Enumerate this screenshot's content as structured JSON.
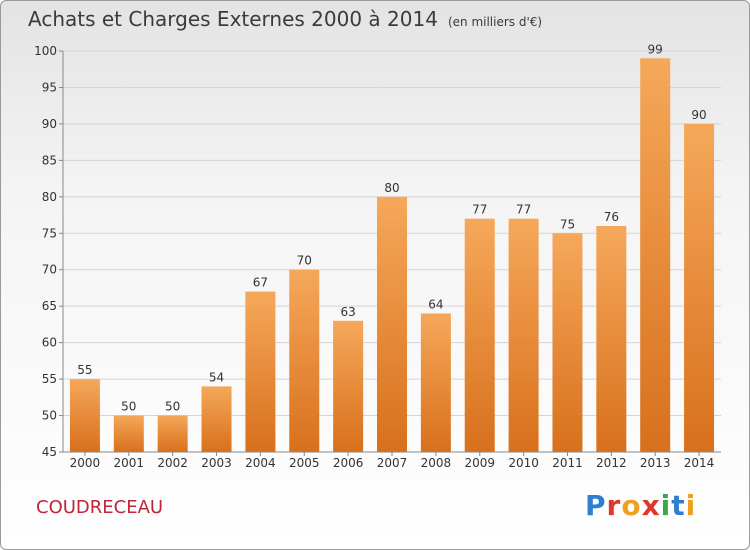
{
  "title": "Achats et Charges Externes 2000 à 2014",
  "subtitle": "(en milliers d'€)",
  "commune": "COUDRECEAU",
  "logo_text": "Proxiti",
  "colors": {
    "bar_light": "#f5a85a",
    "bar_dark": "#d8701c",
    "commune": "#c0253a"
  },
  "chart_data": {
    "type": "bar",
    "categories": [
      "2000",
      "2001",
      "2002",
      "2003",
      "2004",
      "2005",
      "2006",
      "2007",
      "2008",
      "2009",
      "2010",
      "2011",
      "2012",
      "2013",
      "2014"
    ],
    "values": [
      55,
      50,
      50,
      54,
      67,
      70,
      63,
      80,
      64,
      77,
      77,
      75,
      76,
      99,
      90
    ],
    "ylim": [
      45,
      100
    ],
    "yticks": [
      45,
      50,
      55,
      60,
      65,
      70,
      75,
      80,
      85,
      90,
      95,
      100
    ],
    "grid": true
  }
}
